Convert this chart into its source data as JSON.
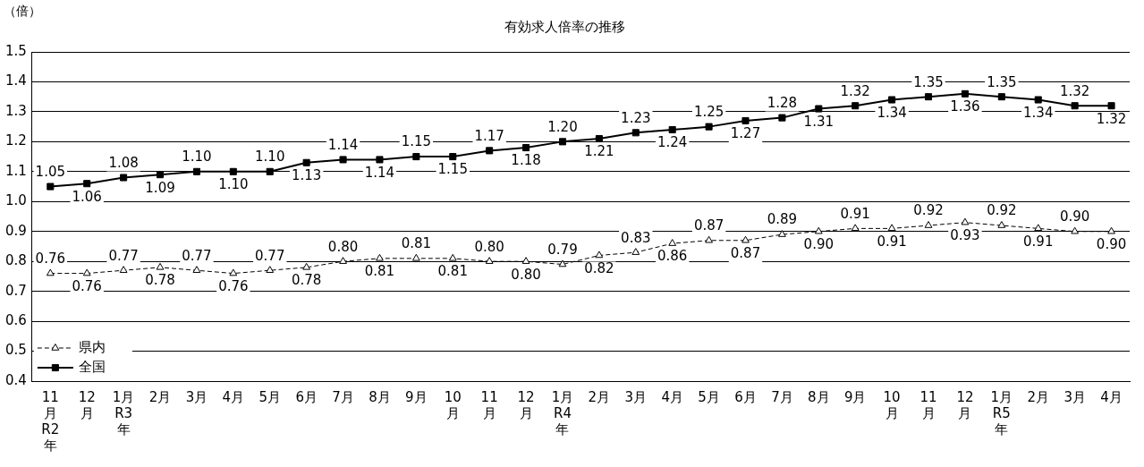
{
  "chart_data": {
    "type": "line",
    "title": "有効求人倍率の推移",
    "ylabel": "（倍）",
    "categories": [
      "11\n月\nR2\n年",
      "12\n月",
      "1月\nR3\n年",
      "2月",
      "3月",
      "4月",
      "5月",
      "6月",
      "7月",
      "8月",
      "9月",
      "10\n月",
      "11\n月",
      "12\n月",
      "1月\nR4\n年",
      "2月",
      "3月",
      "4月",
      "5月",
      "6月",
      "7月",
      "8月",
      "9月",
      "10\n月",
      "11\n月",
      "12\n月",
      "1月\nR5\n年",
      "2月",
      "3月",
      "4月"
    ],
    "series": [
      {
        "name": "県内",
        "color": "#000000",
        "marker": "triangle",
        "line_style": "dashed",
        "values": [
          0.76,
          0.76,
          0.77,
          0.78,
          0.77,
          0.76,
          0.77,
          0.78,
          0.8,
          0.81,
          0.81,
          0.81,
          0.8,
          0.8,
          0.79,
          0.82,
          0.83,
          0.86,
          0.87,
          0.87,
          0.89,
          0.9,
          0.91,
          0.91,
          0.92,
          0.93,
          0.92,
          0.91,
          0.9,
          0.9
        ],
        "value_labels": [
          "0.76",
          "0.76",
          "0.77",
          "0.78",
          "0.77",
          "0.76",
          "0.77",
          "0.78",
          "0.80",
          "0.81",
          "0.81",
          "0.81",
          "0.80",
          "0.80",
          "0.79",
          "0.82",
          "0.83",
          "0.86",
          "0.87",
          "0.87",
          "0.89",
          "0.90",
          "0.91",
          "0.91",
          "0.92",
          "0.93",
          "0.92",
          "0.91",
          "0.90",
          "0.90"
        ]
      },
      {
        "name": "全国",
        "color": "#000000",
        "marker": "square",
        "line_style": "solid",
        "values": [
          1.05,
          1.06,
          1.08,
          1.09,
          1.1,
          1.1,
          1.1,
          1.13,
          1.14,
          1.14,
          1.15,
          1.15,
          1.17,
          1.18,
          1.2,
          1.21,
          1.23,
          1.24,
          1.25,
          1.27,
          1.28,
          1.31,
          1.32,
          1.34,
          1.35,
          1.36,
          1.35,
          1.34,
          1.32,
          1.32
        ],
        "value_labels": [
          "1.05",
          "1.06",
          "1.08",
          "1.09",
          "1.10",
          "1.10",
          "1.10",
          "1.13",
          "1.14",
          "1.14",
          "1.15",
          "1.15",
          "1.17",
          "1.18",
          "1.20",
          "1.21",
          "1.23",
          "1.24",
          "1.25",
          "1.27",
          "1.28",
          "1.31",
          "1.32",
          "1.34",
          "1.35",
          "1.36",
          "1.35",
          "1.34",
          "1.32",
          "1.32"
        ]
      }
    ],
    "ylim": [
      0.4,
      1.5
    ],
    "yticks": [
      {
        "value": 0.4,
        "label": "0.4"
      },
      {
        "value": 0.5,
        "label": "0.5"
      },
      {
        "value": 0.6,
        "label": "0.6"
      },
      {
        "value": 0.7,
        "label": "0.7"
      },
      {
        "value": 0.8,
        "label": "0.8"
      },
      {
        "value": 0.9,
        "label": "0.9"
      },
      {
        "value": 1.0,
        "label": "1.0"
      },
      {
        "value": 1.1,
        "label": "1.1"
      },
      {
        "value": 1.2,
        "label": "1.2"
      },
      {
        "value": 1.3,
        "label": "1.3"
      },
      {
        "value": 1.4,
        "label": "1.4"
      },
      {
        "value": 1.5,
        "label": "1.5"
      }
    ],
    "grid": "y",
    "legend": "bottom left"
  }
}
